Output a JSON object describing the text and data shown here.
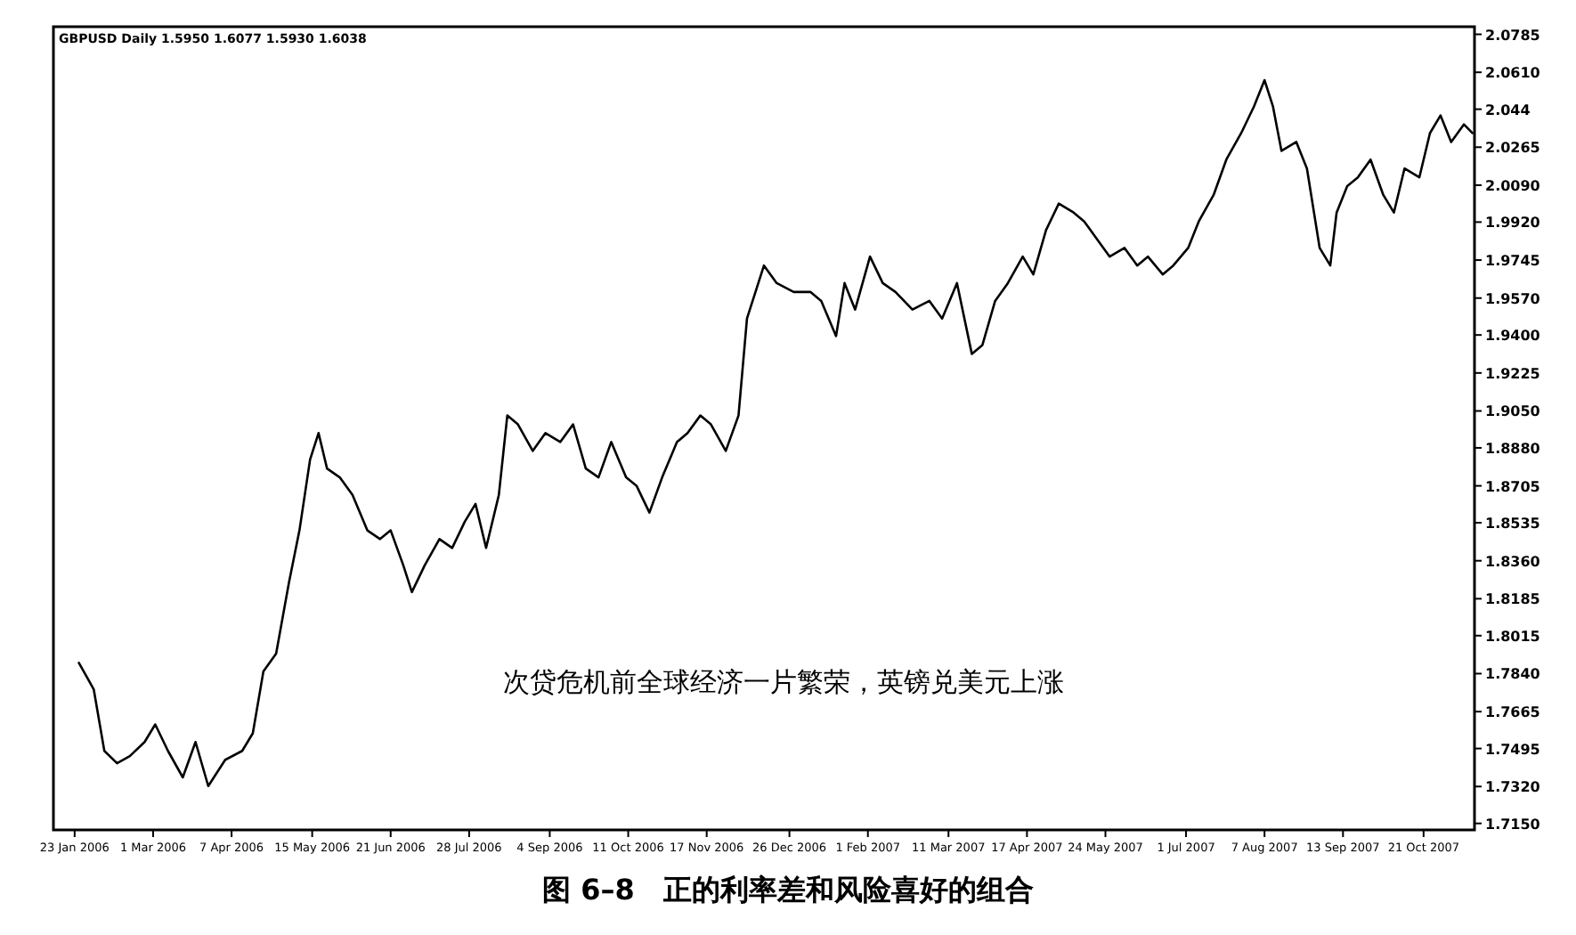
{
  "chart_data": {
    "type": "line",
    "title": "图 6–8　正的利率差和风险喜好的组合",
    "subtitle": "GBPUSD Daily 1.5950 1.6077 1.5930 1.6038",
    "annotations": [
      "次贷危机前全球经济一片繁荣，英镑兑美元上涨"
    ],
    "color": "#000000",
    "x": [
      "2006-01-25",
      "2006-02-01",
      "2006-02-06",
      "2006-02-12",
      "2006-02-18",
      "2006-02-25",
      "2006-03-02",
      "2006-03-08",
      "2006-03-15",
      "2006-03-21",
      "2006-03-27",
      "2006-04-04",
      "2006-04-12",
      "2006-04-17",
      "2006-04-22",
      "2006-04-28",
      "2006-05-04",
      "2006-05-09",
      "2006-05-14",
      "2006-05-18",
      "2006-05-22",
      "2006-05-28",
      "2006-06-03",
      "2006-06-10",
      "2006-06-16",
      "2006-06-21",
      "2006-06-27",
      "2006-07-01",
      "2006-07-07",
      "2006-07-14",
      "2006-07-20",
      "2006-07-26",
      "2006-07-31",
      "2006-08-05",
      "2006-08-11",
      "2006-08-15",
      "2006-08-20",
      "2006-08-27",
      "2006-09-02",
      "2006-09-09",
      "2006-09-15",
      "2006-09-21",
      "2006-09-27",
      "2006-10-03",
      "2006-10-10",
      "2006-10-15",
      "2006-10-21",
      "2006-10-27",
      "2006-11-03",
      "2006-11-08",
      "2006-11-14",
      "2006-11-19",
      "2006-11-26",
      "2006-12-02",
      "2006-12-06",
      "2006-12-10",
      "2006-12-14",
      "2006-12-20",
      "2006-12-28",
      "2007-01-05",
      "2007-01-10",
      "2007-01-17",
      "2007-01-21",
      "2007-01-26",
      "2007-02-02",
      "2007-02-08",
      "2007-02-14",
      "2007-02-22",
      "2007-03-02",
      "2007-03-08",
      "2007-03-15",
      "2007-03-22",
      "2007-03-27",
      "2007-04-02",
      "2007-04-08",
      "2007-04-15",
      "2007-04-20",
      "2007-04-26",
      "2007-05-02",
      "2007-05-09",
      "2007-05-14",
      "2007-05-20",
      "2007-05-26",
      "2007-06-02",
      "2007-06-08",
      "2007-06-13",
      "2007-06-20",
      "2007-06-25",
      "2007-07-02",
      "2007-07-07",
      "2007-07-14",
      "2007-07-20",
      "2007-07-27",
      "2007-08-02",
      "2007-08-07",
      "2007-08-11",
      "2007-08-15",
      "2007-08-22",
      "2007-08-27",
      "2007-09-02",
      "2007-09-07",
      "2007-09-10",
      "2007-09-15",
      "2007-09-20",
      "2007-09-26",
      "2007-10-02",
      "2007-10-07",
      "2007-10-12",
      "2007-10-19",
      "2007-10-24",
      "2007-10-29",
      "2007-11-03",
      "2007-11-09",
      "2007-11-13"
    ],
    "values": [
      1.789,
      1.7768,
      1.7484,
      1.7427,
      1.746,
      1.7525,
      1.7606,
      1.7484,
      1.7362,
      1.7525,
      1.7322,
      1.7443,
      1.7484,
      1.7565,
      1.785,
      1.7932,
      1.8257,
      1.85,
      1.8826,
      1.8948,
      1.8785,
      1.8744,
      1.8663,
      1.85,
      1.846,
      1.85,
      1.8338,
      1.8216,
      1.8338,
      1.846,
      1.8419,
      1.8541,
      1.8622,
      1.8419,
      1.8663,
      1.9029,
      1.8988,
      1.8866,
      1.8948,
      1.8907,
      1.8988,
      1.8785,
      1.8744,
      1.8907,
      1.8744,
      1.8704,
      1.8582,
      1.8744,
      1.8907,
      1.8948,
      1.9029,
      1.8988,
      1.8866,
      1.9029,
      1.9476,
      1.9598,
      1.972,
      1.9639,
      1.9598,
      1.9598,
      1.9557,
      1.9395,
      1.9639,
      1.9517,
      1.9761,
      1.9639,
      1.9598,
      1.9517,
      1.9557,
      1.9476,
      1.9639,
      1.9313,
      1.9354,
      1.9557,
      1.9639,
      1.9761,
      1.9679,
      1.9883,
      2.0005,
      1.9964,
      1.9923,
      1.9842,
      1.9761,
      1.9801,
      1.972,
      1.9761,
      1.9679,
      1.972,
      1.9801,
      1.9923,
      2.0045,
      2.0208,
      2.033,
      2.0452,
      2.0574,
      2.0452,
      2.0248,
      2.0289,
      2.0167,
      1.9801,
      1.972,
      1.9964,
      2.0086,
      2.0126,
      2.0208,
      2.0045,
      1.9964,
      2.0167,
      2.0126,
      2.033,
      2.0411,
      2.0289,
      2.037,
      2.033
    ],
    "xlim": [
      "2006-01-13",
      "2007-11-14"
    ],
    "xticks": [
      {
        "value": "2006-01-23",
        "label": "23 Jan 2006"
      },
      {
        "value": "2006-03-01",
        "label": "1 Mar 2006"
      },
      {
        "value": "2006-04-07",
        "label": "7 Apr 2006"
      },
      {
        "value": "2006-05-15",
        "label": "15 May 2006"
      },
      {
        "value": "2006-06-21",
        "label": "21 Jun 2006"
      },
      {
        "value": "2006-07-28",
        "label": "28 Jul 2006"
      },
      {
        "value": "2006-09-04",
        "label": "4 Sep 2006"
      },
      {
        "value": "2006-10-11",
        "label": "11 Oct 2006"
      },
      {
        "value": "2006-11-17",
        "label": "17 Nov 2006"
      },
      {
        "value": "2006-12-26",
        "label": "26 Dec 2006"
      },
      {
        "value": "2007-02-01",
        "label": "1 Feb 2007"
      },
      {
        "value": "2007-03-11",
        "label": "11 Mar 2007"
      },
      {
        "value": "2007-04-17",
        "label": "17 Apr 2007"
      },
      {
        "value": "2007-05-24",
        "label": "24 May 2007"
      },
      {
        "value": "2007-07-01",
        "label": "1 Jul 2007"
      },
      {
        "value": "2007-08-07",
        "label": "7 Aug 2007"
      },
      {
        "value": "2007-09-13",
        "label": "13 Sep 2007"
      },
      {
        "value": "2007-10-21",
        "label": "21 Oct 2007"
      }
    ],
    "ylim": [
      1.712,
      2.082
    ],
    "yticks": [
      2.0785,
      {
        "value": 2.061,
        "label": "2.0610"
      },
      2.044,
      2.0265,
      {
        "value": 2.009,
        "label": "2.0090"
      },
      {
        "value": 1.992,
        "label": "1.9920"
      },
      1.9745,
      {
        "value": 1.957,
        "label": "1.9570"
      },
      {
        "value": 1.94,
        "label": "1.9400"
      },
      1.9225,
      {
        "value": 1.905,
        "label": "1.9050"
      },
      {
        "value": 1.888,
        "label": "1.8880"
      },
      1.8705,
      1.8535,
      {
        "value": 1.836,
        "label": "1.8360"
      },
      1.8185,
      1.8015,
      {
        "value": 1.784,
        "label": "1.7840"
      },
      1.7665,
      1.7495,
      {
        "value": 1.732,
        "label": "1.7320"
      },
      {
        "value": 1.715,
        "label": "1.7150"
      }
    ]
  }
}
